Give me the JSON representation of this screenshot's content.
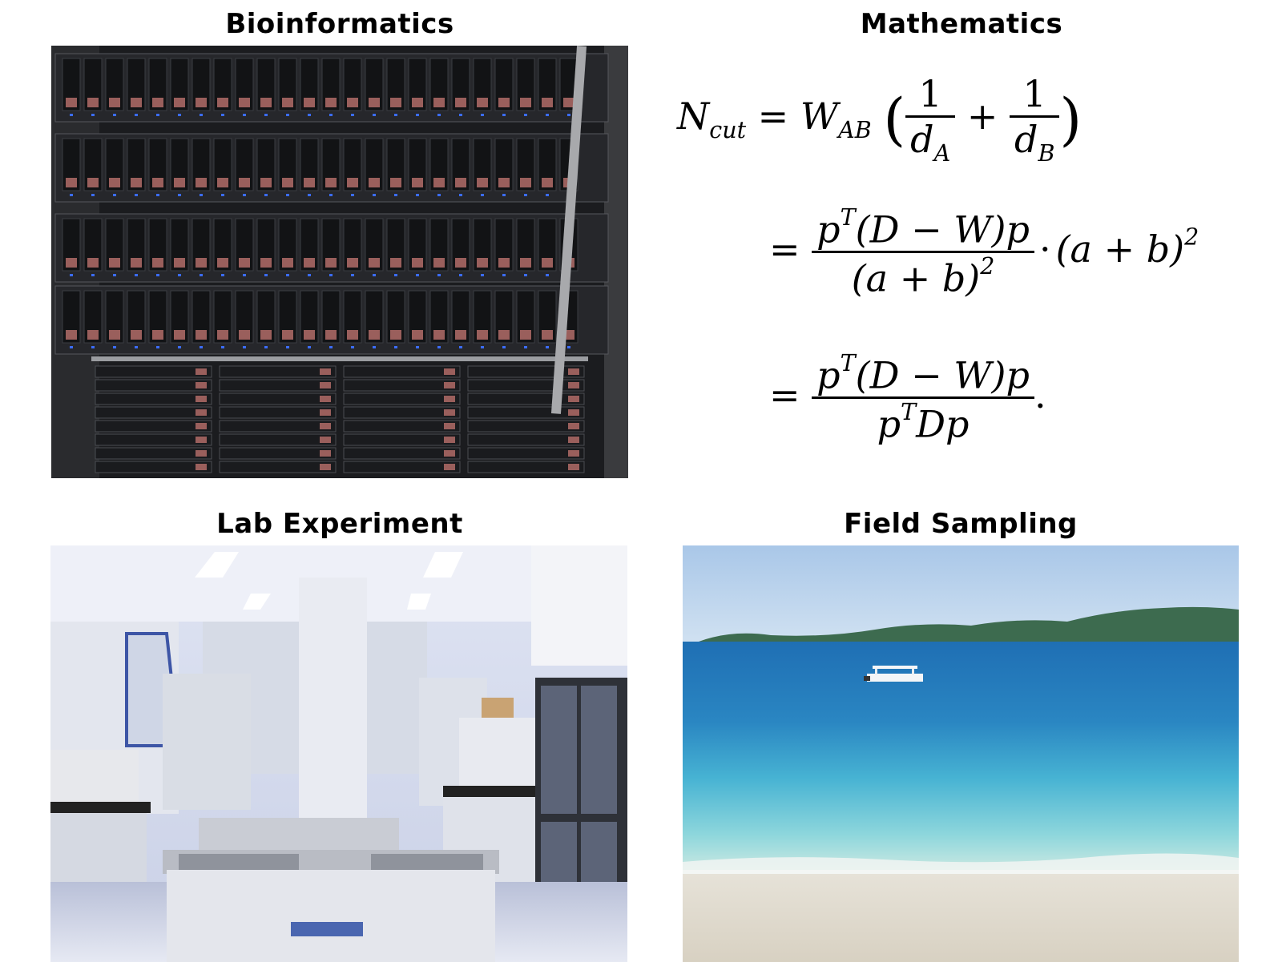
{
  "panels": {
    "bioinformatics": {
      "title": "Bioinformatics"
    },
    "mathematics": {
      "title": "Mathematics"
    },
    "lab": {
      "title": "Lab Experiment"
    },
    "field": {
      "title": "Field Sampling"
    }
  },
  "equation": {
    "lhs": "N",
    "lhs_sub": "cut",
    "eq": "=",
    "w": "W",
    "w_sub": "AB",
    "one": "1",
    "d": "d",
    "d_sub_a": "A",
    "d_sub_b": "B",
    "plus": "+",
    "line2_num": "p",
    "line2_num_sup": "T",
    "line2_num_rest": "(D − W)p",
    "line2_den": "(a + b)",
    "sq": "2",
    "dot": "·",
    "line2_tail": "(a + b)",
    "line3_num": "p",
    "line3_num_sup": "T",
    "line3_num_rest": "(D − W)p",
    "line3_den_a": "p",
    "line3_den_sup": "T",
    "line3_den_b": "Dp",
    "period": "."
  },
  "photos": {
    "server": "server-rack-photo",
    "lab": "laboratory-photo",
    "beach": "beach-photo"
  }
}
